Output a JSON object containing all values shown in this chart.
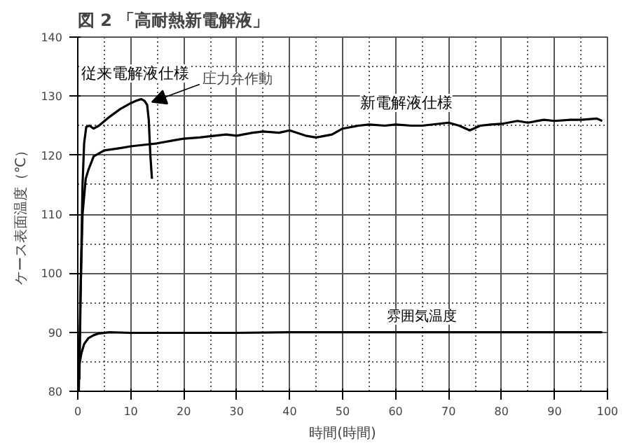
{
  "chart_data": {
    "type": "line",
    "title": "図 2 「高耐熱新電解液」",
    "xlabel": "時間(時間)",
    "ylabel": "ケース表面温度（℃）",
    "xlim": [
      0,
      100
    ],
    "ylim": [
      80,
      140
    ],
    "xticks": [
      0,
      10,
      20,
      30,
      40,
      50,
      60,
      70,
      80,
      90,
      100
    ],
    "yticks": [
      80,
      90,
      100,
      110,
      120,
      130,
      140
    ],
    "grid": true,
    "series": [
      {
        "name": "従来電解液仕様",
        "color": "#000000",
        "x": [
          0.3,
          0.6,
          0.9,
          1.2,
          1.6,
          2.2,
          3,
          4,
          6,
          8,
          10,
          11,
          12,
          12.6,
          13.1,
          13.4,
          13.7,
          14
        ],
        "values": [
          82,
          100,
          115,
          122,
          124.8,
          125,
          124.5,
          125,
          126.5,
          127.8,
          128.8,
          129.2,
          129.5,
          129.2,
          128.5,
          126,
          120,
          116
        ]
      },
      {
        "name": "新電解液仕様",
        "color": "#000000",
        "x": [
          0.2,
          0.5,
          0.9,
          1.5,
          2,
          3,
          5,
          8,
          10,
          13,
          15,
          18,
          20,
          23,
          25,
          28,
          30,
          33,
          35,
          38,
          40,
          43,
          45,
          48,
          50,
          53,
          55,
          58,
          60,
          63,
          65,
          68,
          70,
          72,
          74,
          76,
          78,
          80,
          83,
          85,
          88,
          90,
          93,
          95,
          98,
          99
        ],
        "values": [
          80,
          96,
          110,
          116,
          117.5,
          119.8,
          120.8,
          121.2,
          121.5,
          121.8,
          122,
          122.5,
          122.8,
          123,
          123.2,
          123.5,
          123.3,
          123.8,
          124,
          123.8,
          124.2,
          123.3,
          123,
          123.5,
          124.5,
          125,
          125.2,
          125,
          125.2,
          125,
          125,
          125.3,
          125.5,
          125,
          124.2,
          125,
          125.2,
          125.3,
          125.8,
          125.5,
          126,
          125.8,
          126,
          126,
          126.2,
          125.8
        ]
      },
      {
        "name": "雰囲気温度",
        "color": "#000000",
        "x": [
          0,
          0.3,
          0.7,
          1.2,
          2,
          3,
          4,
          6,
          10,
          20,
          30,
          40,
          50,
          60,
          70,
          80,
          90,
          99
        ],
        "values": [
          82,
          84.5,
          86.5,
          88,
          89,
          89.5,
          89.8,
          90,
          89.9,
          89.9,
          89.9,
          90,
          90,
          90,
          90,
          90,
          90,
          90
        ]
      }
    ],
    "annotations": [
      {
        "text": "圧力弁作動",
        "x": 14,
        "y": 129
      }
    ]
  }
}
